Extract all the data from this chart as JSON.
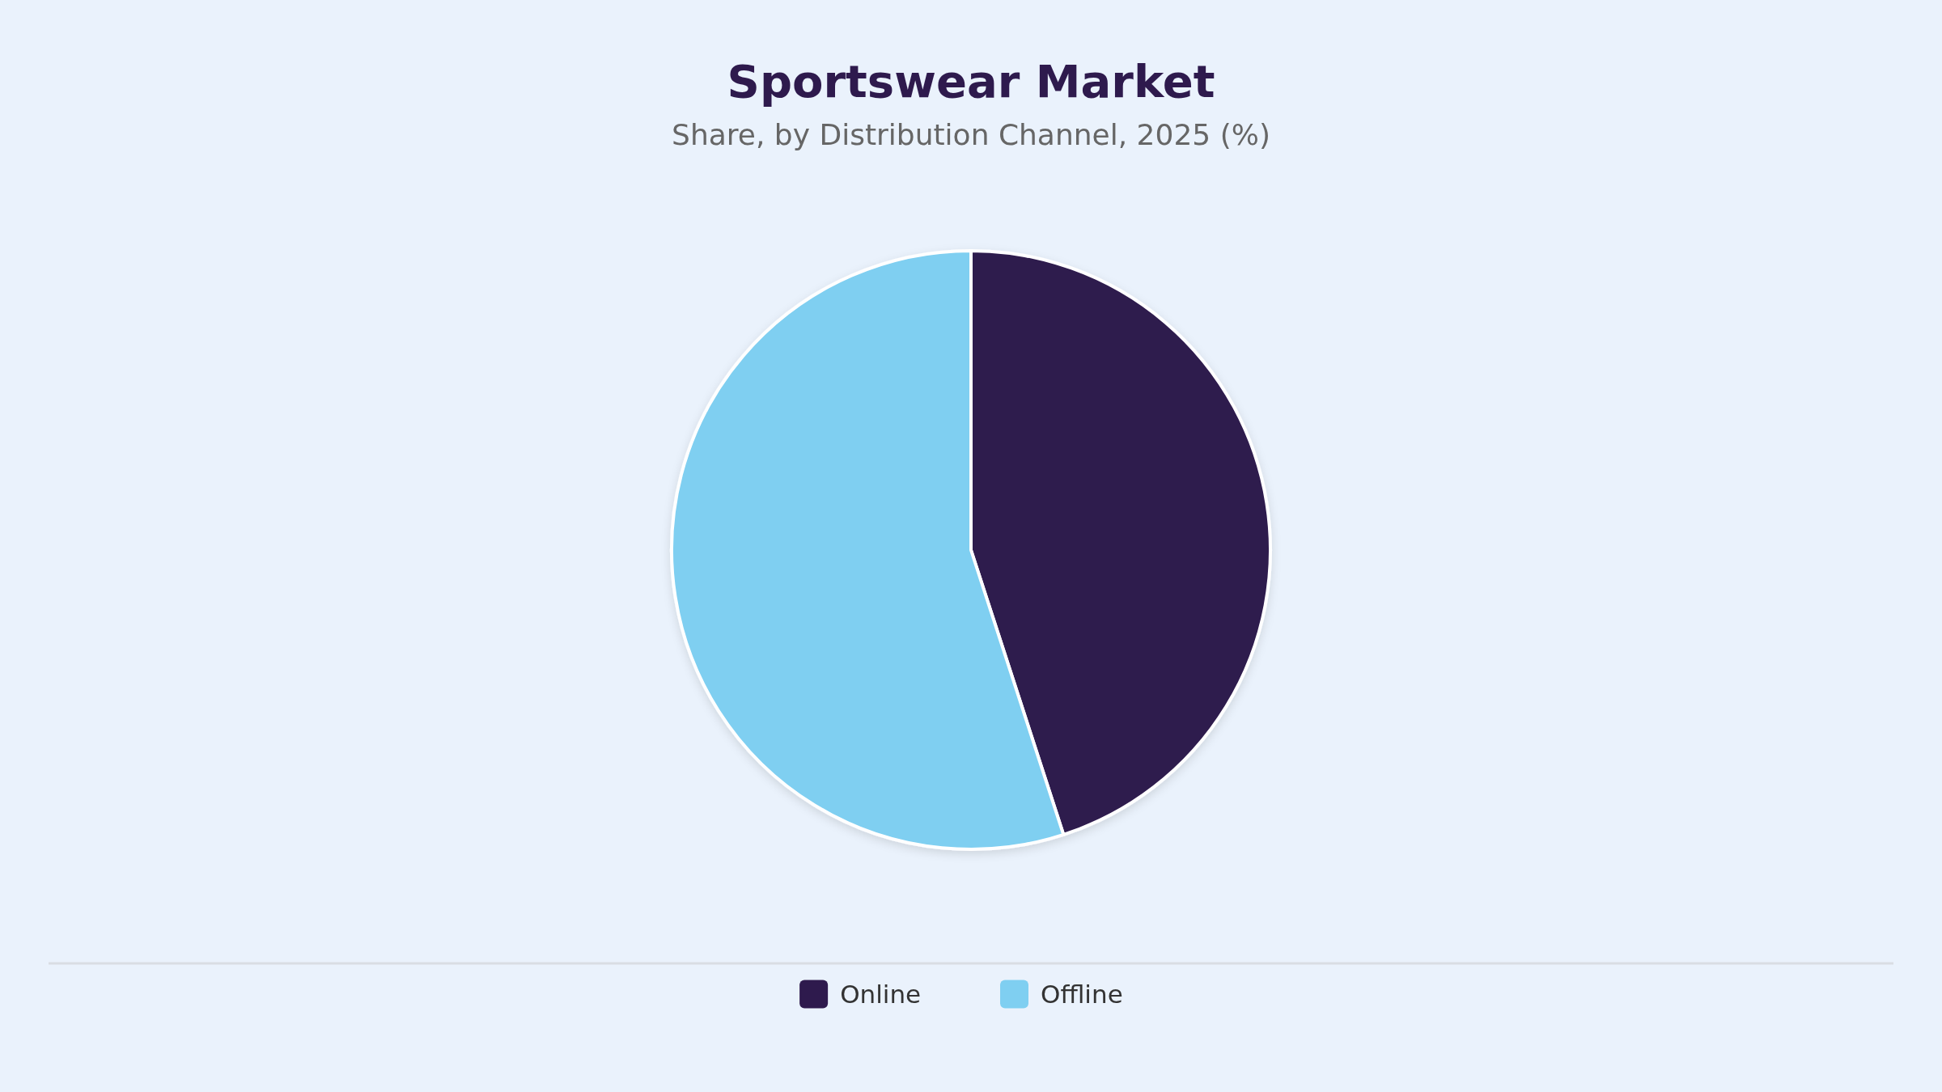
{
  "chart_data": {
    "type": "pie",
    "title": "Sportswear Market",
    "subtitle": "Share, by Distribution Channel, 2025 (%)",
    "categories": [
      "Online",
      "Offline"
    ],
    "values": [
      45,
      55
    ],
    "colors": [
      "#2e1a4d",
      "#7fcff1"
    ],
    "legend": "bottom"
  }
}
